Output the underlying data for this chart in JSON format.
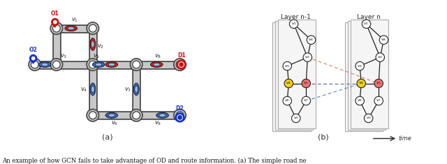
{
  "caption": "An example of how GCN fails to take advantage of OD and route information. (a) The simple road ne",
  "sub_a_label": "(a)",
  "sub_b_label": "(b)",
  "layer_n1_label": "Layer n-1",
  "layer_n_label": "Layer n",
  "time_label": "time",
  "road_color": "#c8c8c8",
  "road_border": "#444444",
  "node_fill": "#ffffff",
  "node_border": "#333333",
  "red_car_color": "#cc2222",
  "blue_car_color": "#3366cc",
  "origin_red": "#cc1111",
  "origin_blue": "#1133cc",
  "dest_red": "#cc1111",
  "dest_blue": "#1133cc",
  "pink_node": "#f07070",
  "yellow_node": "#f0d020",
  "dashed_red": "#e07050",
  "dashed_blue": "#5080c0",
  "layer_face": "#f5f5f5",
  "layer_edge": "#aaaaaa"
}
